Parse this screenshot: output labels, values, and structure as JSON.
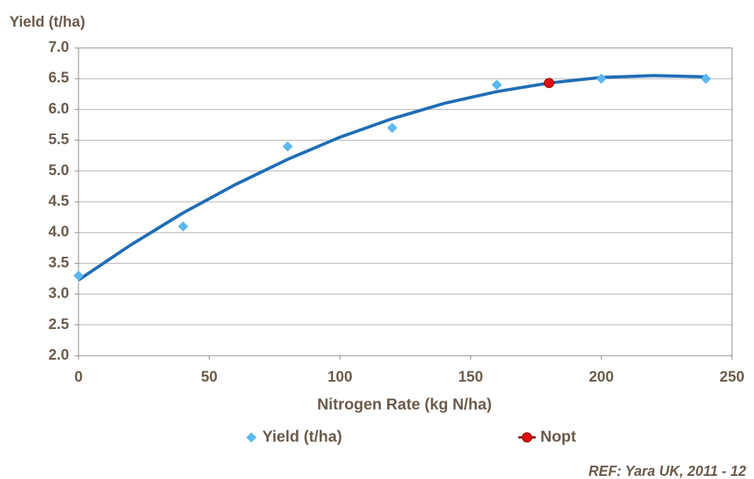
{
  "chart_data": {
    "type": "scatter",
    "y_axis_title": "Yield (t/ha)",
    "x_axis_title": "Nitrogen Rate (kg N/ha)",
    "reference": "REF: Yara UK, 2011 - 12",
    "xlim": [
      0,
      250
    ],
    "xticks": [
      0,
      50,
      100,
      150,
      200,
      250
    ],
    "ylim": [
      2,
      7
    ],
    "yticks": [
      {
        "value": 2,
        "label": "2.0"
      },
      {
        "value": 2.5,
        "label": "2.5"
      },
      {
        "value": 3,
        "label": "3.0"
      },
      {
        "value": 3.5,
        "label": "3.5"
      },
      {
        "value": 4,
        "label": "4.0"
      },
      {
        "value": 4.5,
        "label": "4.5"
      },
      {
        "value": 5,
        "label": "5.0"
      },
      {
        "value": 5.5,
        "label": "5.5"
      },
      {
        "value": 6,
        "label": "6.0"
      },
      {
        "value": 6.5,
        "label": "6.5"
      },
      {
        "value": 7,
        "label": "7.0"
      }
    ],
    "grid": true,
    "series": [
      {
        "style": "line",
        "color": "#1f6db5",
        "x": [
          0,
          20,
          40,
          60,
          80,
          100,
          120,
          140,
          160,
          180,
          200,
          220,
          240
        ],
        "values": [
          3.23,
          3.8,
          4.32,
          4.78,
          5.19,
          5.55,
          5.85,
          6.1,
          6.29,
          6.43,
          6.52,
          6.55,
          6.53
        ]
      },
      {
        "name": "Yield (t/ha)",
        "marker": "diamond",
        "color": "#5bb8f0",
        "x": [
          0,
          40,
          80,
          120,
          160,
          200,
          240
        ],
        "values": [
          3.3,
          4.1,
          5.4,
          5.7,
          6.4,
          6.5,
          6.5
        ]
      },
      {
        "name": "Nopt",
        "marker": "circle",
        "color": "#e01010",
        "x": [
          180
        ],
        "values": [
          6.43
        ]
      }
    ]
  }
}
